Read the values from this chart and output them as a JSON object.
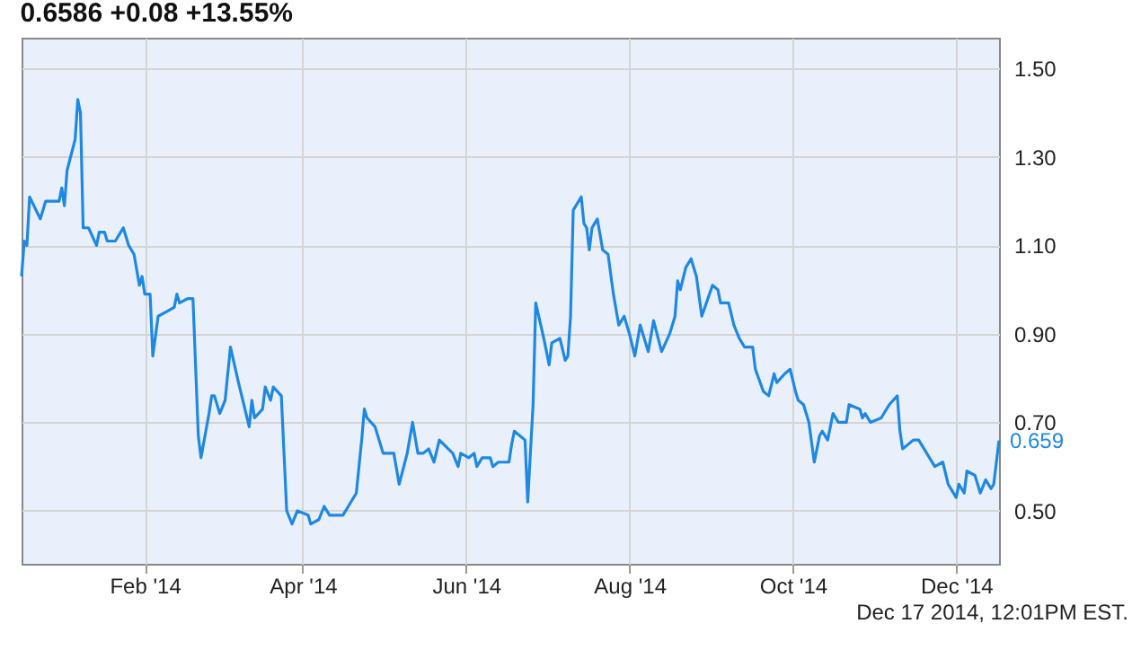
{
  "chart_data": {
    "type": "line",
    "title": "0.6586  +0.08  +13.55%",
    "x": [
      "2013-12-17",
      "2013-12-18",
      "2013-12-19",
      "2013-12-20",
      "2013-12-24",
      "2013-12-26",
      "2013-12-31",
      "2014-01-01",
      "2014-01-02",
      "2014-01-03",
      "2014-01-06",
      "2014-01-07",
      "2014-01-08",
      "2014-01-09",
      "2014-01-11",
      "2014-01-14",
      "2014-01-15",
      "2014-01-17",
      "2014-01-18",
      "2014-01-21",
      "2014-01-24",
      "2014-01-26",
      "2014-01-28",
      "2014-01-30",
      "2014-01-31",
      "2014-02-01",
      "2014-02-03",
      "2014-02-04",
      "2014-02-06",
      "2014-02-09",
      "2014-02-12",
      "2014-02-13",
      "2014-02-14",
      "2014-02-17",
      "2014-02-19",
      "2014-02-21",
      "2014-02-22",
      "2014-02-25",
      "2014-02-26",
      "2014-02-27",
      "2014-03-01",
      "2014-03-03",
      "2014-03-05",
      "2014-03-08",
      "2014-03-10",
      "2014-03-12",
      "2014-03-13",
      "2014-03-14",
      "2014-03-17",
      "2014-03-18",
      "2014-03-20",
      "2014-03-21",
      "2014-03-24",
      "2014-03-26",
      "2014-03-28",
      "2014-03-30",
      "2014-04-03",
      "2014-04-04",
      "2014-04-07",
      "2014-04-09",
      "2014-04-11",
      "2014-04-16",
      "2014-04-18",
      "2014-04-21",
      "2014-04-23",
      "2014-04-24",
      "2014-04-25",
      "2014-04-28",
      "2014-05-01",
      "2014-05-05",
      "2014-05-07",
      "2014-05-10",
      "2014-05-12",
      "2014-05-14",
      "2014-05-16",
      "2014-05-18",
      "2014-05-20",
      "2014-05-22",
      "2014-05-27",
      "2014-05-29",
      "2014-05-30",
      "2014-06-02",
      "2014-06-04",
      "2014-06-05",
      "2014-06-07",
      "2014-06-10",
      "2014-06-11",
      "2014-06-13",
      "2014-06-17",
      "2014-06-18",
      "2014-06-19",
      "2014-06-21",
      "2014-06-23",
      "2014-06-24",
      "2014-06-26",
      "2014-06-27",
      "2014-06-30",
      "2014-07-02",
      "2014-07-03",
      "2014-07-06",
      "2014-07-08",
      "2014-07-09",
      "2014-07-10",
      "2014-07-11",
      "2014-07-14",
      "2014-07-15",
      "2014-07-16",
      "2014-07-17",
      "2014-07-18",
      "2014-07-20",
      "2014-07-22",
      "2014-07-24",
      "2014-07-26",
      "2014-07-28",
      "2014-07-30",
      "2014-08-01",
      "2014-08-03",
      "2014-08-05",
      "2014-08-08",
      "2014-08-10",
      "2014-08-13",
      "2014-08-16",
      "2014-08-18",
      "2014-08-19",
      "2014-08-20",
      "2014-08-22",
      "2014-08-24",
      "2014-08-26",
      "2014-08-28",
      "2014-09-01",
      "2014-09-03",
      "2014-09-04",
      "2014-09-07",
      "2014-09-09",
      "2014-09-11",
      "2014-09-13",
      "2014-09-16",
      "2014-09-17",
      "2014-09-20",
      "2014-09-22",
      "2014-09-24",
      "2014-09-25",
      "2014-09-28",
      "2014-09-30",
      "2014-10-02",
      "2014-10-03",
      "2014-10-05",
      "2014-10-07",
      "2014-10-09",
      "2014-10-11",
      "2014-10-12",
      "2014-10-14",
      "2014-10-16",
      "2014-10-18",
      "2014-10-21",
      "2014-10-22",
      "2014-10-26",
      "2014-10-27",
      "2014-10-28",
      "2014-10-30",
      "2014-11-03",
      "2014-11-06",
      "2014-11-09",
      "2014-11-10",
      "2014-11-11",
      "2014-11-15",
      "2014-11-17",
      "2014-11-20",
      "2014-11-23",
      "2014-11-26",
      "2014-11-28",
      "2014-12-01",
      "2014-12-02",
      "2014-12-04",
      "2014-12-05",
      "2014-12-08",
      "2014-12-10",
      "2014-12-12",
      "2014-12-14",
      "2014-12-15",
      "2014-12-17"
    ],
    "series": [
      {
        "color": "#1e88e5",
        "values": [
          1.03,
          1.11,
          1.1,
          1.21,
          1.16,
          1.2,
          1.2,
          1.23,
          1.19,
          1.27,
          1.34,
          1.43,
          1.4,
          1.14,
          1.14,
          1.1,
          1.13,
          1.13,
          1.11,
          1.11,
          1.14,
          1.1,
          1.08,
          1.01,
          1.03,
          0.99,
          0.99,
          0.85,
          0.94,
          0.95,
          0.96,
          0.99,
          0.97,
          0.98,
          0.98,
          0.67,
          0.62,
          0.72,
          0.76,
          0.76,
          0.72,
          0.75,
          0.87,
          0.79,
          0.74,
          0.69,
          0.75,
          0.71,
          0.73,
          0.78,
          0.75,
          0.78,
          0.76,
          0.5,
          0.47,
          0.5,
          0.49,
          0.47,
          0.48,
          0.51,
          0.49,
          0.49,
          0.51,
          0.54,
          0.66,
          0.73,
          0.71,
          0.69,
          0.63,
          0.63,
          0.56,
          0.63,
          0.7,
          0.63,
          0.63,
          0.64,
          0.61,
          0.66,
          0.63,
          0.6,
          0.63,
          0.62,
          0.63,
          0.6,
          0.62,
          0.62,
          0.6,
          0.61,
          0.61,
          0.65,
          0.68,
          0.67,
          0.66,
          0.52,
          0.74,
          0.97,
          0.89,
          0.83,
          0.88,
          0.89,
          0.84,
          0.85,
          0.94,
          1.18,
          1.21,
          1.15,
          1.14,
          1.09,
          1.14,
          1.16,
          1.09,
          1.08,
          0.99,
          0.92,
          0.94,
          0.9,
          0.85,
          0.92,
          0.86,
          0.93,
          0.86,
          0.9,
          0.94,
          1.02,
          1.0,
          1.05,
          1.07,
          1.03,
          0.94,
          1.01,
          1.0,
          0.97,
          0.97,
          0.92,
          0.89,
          0.87,
          0.87,
          0.82,
          0.77,
          0.76,
          0.81,
          0.79,
          0.81,
          0.82,
          0.77,
          0.75,
          0.74,
          0.7,
          0.61,
          0.67,
          0.68,
          0.66,
          0.72,
          0.7,
          0.7,
          0.74,
          0.73,
          0.71,
          0.72,
          0.7,
          0.71,
          0.74,
          0.76,
          0.68,
          0.64,
          0.66,
          0.66,
          0.63,
          0.6,
          0.61,
          0.56,
          0.53,
          0.56,
          0.54,
          0.59,
          0.58,
          0.54,
          0.57,
          0.55,
          0.56,
          0.659
        ]
      }
    ],
    "xlim": [
      "2013-12-17",
      "2014-12-17"
    ],
    "xticks": [
      {
        "value": "2014-02-01",
        "label": "Feb '14"
      },
      {
        "value": "2014-04-01",
        "label": "Apr '14"
      },
      {
        "value": "2014-06-01",
        "label": "Jun '14"
      },
      {
        "value": "2014-08-01",
        "label": "Aug '14"
      },
      {
        "value": "2014-10-01",
        "label": "Oct '14"
      },
      {
        "value": "2014-12-01",
        "label": "Dec '14"
      }
    ],
    "ylim": [
      0.38,
      1.57
    ],
    "yticks": [
      {
        "value": 0.5,
        "label": "0.50"
      },
      {
        "value": 0.7,
        "label": "0.70"
      },
      {
        "value": 0.9,
        "label": "0.90"
      },
      {
        "value": 1.1,
        "label": "1.10"
      },
      {
        "value": 1.3,
        "label": "1.30"
      },
      {
        "value": 1.5,
        "label": "1.50"
      }
    ],
    "grid": true,
    "legend": false,
    "marker": "none",
    "line_style": "solid",
    "annotations": [
      {
        "text": "0.659",
        "x": "2014-12-17",
        "y": 0.659
      },
      "Dec 17 2014, 12:01PM EST."
    ]
  }
}
